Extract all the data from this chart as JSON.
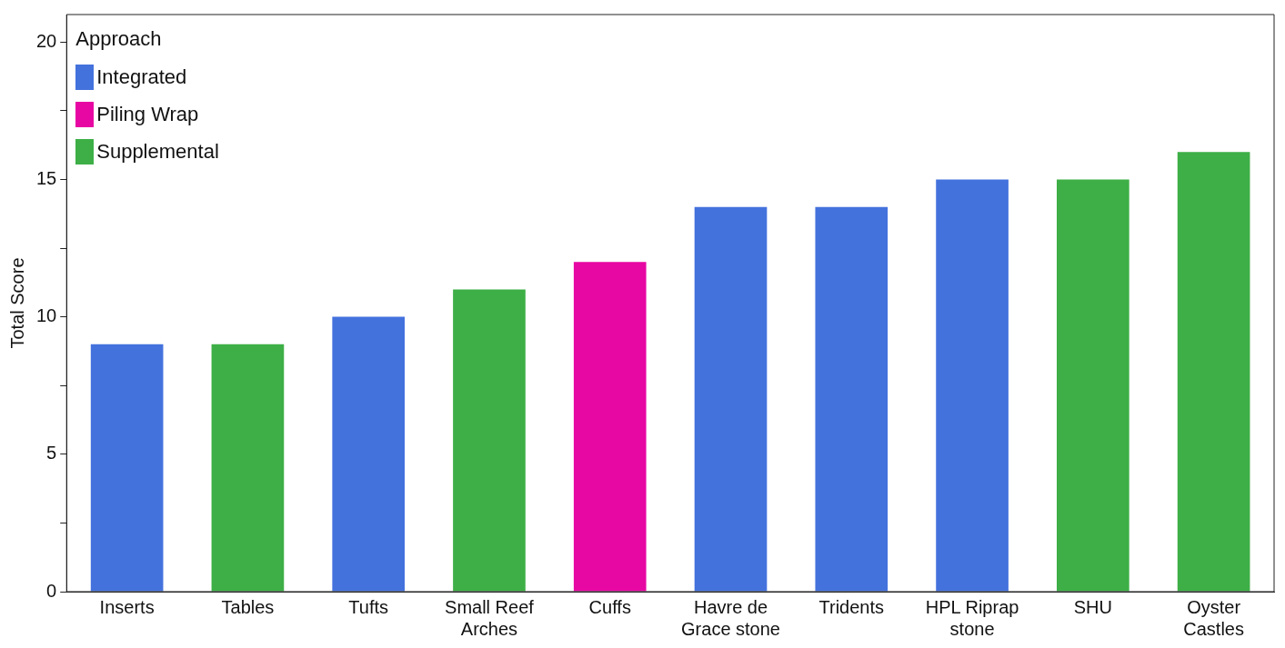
{
  "chart_data": {
    "type": "bar",
    "ylabel": "Total Score",
    "legend_title": "Approach",
    "legend": "top left",
    "grid": false,
    "categories": [
      "Inserts",
      "Tables",
      "Tufts",
      "Small Reef Arches",
      "Cuffs",
      "Havre de Grace stone",
      "Tridents",
      "HPL Riprap stone",
      "SHU",
      "Oyster Castles"
    ],
    "series": [
      {
        "name": "Integrated",
        "color": "#4472dd",
        "values": [
          9,
          null,
          10,
          null,
          null,
          14,
          14,
          15,
          null,
          null
        ]
      },
      {
        "name": "Piling Wrap",
        "color": "#e707a3",
        "values": [
          null,
          null,
          null,
          null,
          12,
          null,
          null,
          null,
          null,
          null
        ]
      },
      {
        "name": "Supplemental",
        "color": "#3daf46",
        "values": [
          null,
          9,
          null,
          11,
          null,
          null,
          null,
          null,
          15,
          16
        ]
      }
    ],
    "ylim": [
      0,
      21
    ],
    "yticks": [
      0,
      {
        "value": 2.5,
        "label": null
      },
      5,
      {
        "value": 7.5,
        "label": null
      },
      10,
      {
        "value": 12.5,
        "label": null
      },
      15,
      {
        "value": 17.5,
        "label": null
      },
      20
    ]
  }
}
